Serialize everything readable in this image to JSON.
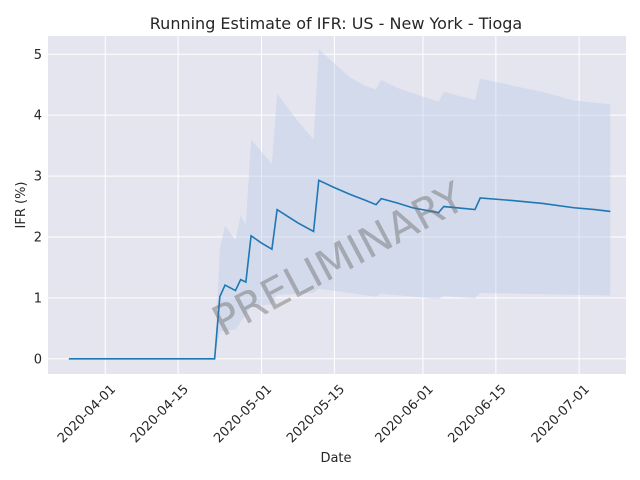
{
  "chart_data": {
    "type": "line",
    "title": "Running Estimate of IFR: US - New York - Tioga",
    "xlabel": "Date",
    "ylabel": "IFR (%)",
    "x_ticks": [
      "2020-04-01",
      "2020-04-15",
      "2020-05-01",
      "2020-05-15",
      "2020-06-01",
      "2020-06-15",
      "2020-07-01"
    ],
    "y_ticks": [
      "0",
      "1",
      "2",
      "3",
      "4",
      "5"
    ],
    "xlim": [
      "2020-03-21",
      "2020-07-10"
    ],
    "ylim": [
      -0.25,
      5.3
    ],
    "grid": true,
    "watermark": "PRELIMINARY",
    "colors": {
      "background": "#e5e5ef",
      "grid": "#ffffff",
      "line": "#1f77b4",
      "band": "#aec7e8"
    },
    "series": [
      {
        "points": [
          [
            "2020-03-25",
            0
          ],
          [
            "2020-04-22",
            0
          ],
          [
            "2020-04-23",
            1.02
          ],
          [
            "2020-04-24",
            1.21
          ],
          [
            "2020-04-26",
            1.12
          ],
          [
            "2020-04-27",
            1.3
          ],
          [
            "2020-04-28",
            1.26
          ],
          [
            "2020-04-29",
            2.02
          ],
          [
            "2020-05-01",
            1.9
          ],
          [
            "2020-05-03",
            1.8
          ],
          [
            "2020-05-04",
            2.45
          ],
          [
            "2020-05-06",
            2.34
          ],
          [
            "2020-05-08",
            2.23
          ],
          [
            "2020-05-11",
            2.09
          ],
          [
            "2020-05-12",
            2.93
          ],
          [
            "2020-05-15",
            2.81
          ],
          [
            "2020-05-18",
            2.7
          ],
          [
            "2020-05-21",
            2.6
          ],
          [
            "2020-05-23",
            2.53
          ],
          [
            "2020-05-24",
            2.63
          ],
          [
            "2020-05-27",
            2.56
          ],
          [
            "2020-05-30",
            2.48
          ],
          [
            "2020-06-04",
            2.4
          ],
          [
            "2020-06-05",
            2.5
          ],
          [
            "2020-06-11",
            2.45
          ],
          [
            "2020-06-12",
            2.64
          ],
          [
            "2020-06-18",
            2.6
          ],
          [
            "2020-06-24",
            2.55
          ],
          [
            "2020-06-30",
            2.48
          ],
          [
            "2020-07-04",
            2.45
          ],
          [
            "2020-07-07",
            2.42
          ]
        ],
        "ci_lower": [
          [
            "2020-04-22",
            0
          ],
          [
            "2020-04-23",
            0.45
          ],
          [
            "2020-04-26",
            0.48
          ],
          [
            "2020-04-29",
            0.85
          ],
          [
            "2020-05-03",
            0.9
          ],
          [
            "2020-05-04",
            1.05
          ],
          [
            "2020-05-11",
            1.08
          ],
          [
            "2020-05-12",
            1.15
          ],
          [
            "2020-05-23",
            1.02
          ],
          [
            "2020-05-24",
            1.07
          ],
          [
            "2020-06-04",
            0.98
          ],
          [
            "2020-06-05",
            1.03
          ],
          [
            "2020-06-11",
            0.99
          ],
          [
            "2020-06-12",
            1.08
          ],
          [
            "2020-07-07",
            1.04
          ]
        ],
        "ci_upper": [
          [
            "2020-04-22",
            0
          ],
          [
            "2020-04-23",
            1.8
          ],
          [
            "2020-04-24",
            2.18
          ],
          [
            "2020-04-26",
            1.95
          ],
          [
            "2020-04-27",
            2.35
          ],
          [
            "2020-04-28",
            2.2
          ],
          [
            "2020-04-29",
            3.6
          ],
          [
            "2020-05-03",
            3.2
          ],
          [
            "2020-05-04",
            4.35
          ],
          [
            "2020-05-08",
            3.9
          ],
          [
            "2020-05-11",
            3.6
          ],
          [
            "2020-05-12",
            5.08
          ],
          [
            "2020-05-15",
            4.85
          ],
          [
            "2020-05-18",
            4.62
          ],
          [
            "2020-05-21",
            4.48
          ],
          [
            "2020-05-23",
            4.42
          ],
          [
            "2020-05-24",
            4.58
          ],
          [
            "2020-05-27",
            4.45
          ],
          [
            "2020-05-30",
            4.36
          ],
          [
            "2020-06-04",
            4.22
          ],
          [
            "2020-06-05",
            4.38
          ],
          [
            "2020-06-11",
            4.25
          ],
          [
            "2020-06-12",
            4.6
          ],
          [
            "2020-06-24",
            4.38
          ],
          [
            "2020-06-30",
            4.24
          ],
          [
            "2020-07-07",
            4.18
          ]
        ]
      }
    ]
  }
}
